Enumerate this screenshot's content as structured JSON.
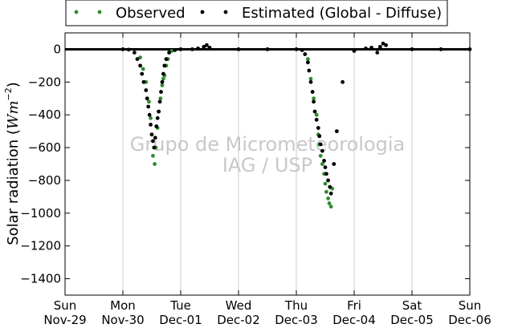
{
  "chart_data": {
    "type": "scatter",
    "title": "",
    "xlabel": "",
    "ylabel": "Solar radiation (Wm^-2)",
    "ylabel_parts": {
      "text": "Solar radiation (",
      "unit_base": "Wm",
      "unit_exp": "−2",
      "close": ")"
    },
    "xlim": [
      0,
      7
    ],
    "ylim": [
      -1500,
      100
    ],
    "grid": "vertical",
    "legend_position": "top",
    "x_ticks": [
      {
        "pos": 0,
        "day": "Sun",
        "date": "Nov-29"
      },
      {
        "pos": 1,
        "day": "Mon",
        "date": "Nov-30"
      },
      {
        "pos": 2,
        "day": "Tue",
        "date": "Dec-01"
      },
      {
        "pos": 3,
        "day": "Wed",
        "date": "Dec-02"
      },
      {
        "pos": 4,
        "day": "Thu",
        "date": "Dec-03"
      },
      {
        "pos": 5,
        "day": "Fri",
        "date": "Dec-04"
      },
      {
        "pos": 6,
        "day": "Sat",
        "date": "Dec-05"
      },
      {
        "pos": 7,
        "day": "Sun",
        "date": "Dec-06"
      }
    ],
    "y_ticks": [
      0,
      -200,
      -400,
      -600,
      -800,
      -1000,
      -1200,
      -1400
    ],
    "y_tick_labels": [
      "0",
      "−200",
      "−400",
      "−600",
      "−800",
      "−1000",
      "−1200",
      "−1400"
    ],
    "watermark": [
      "Grupo de Micrometeorologia",
      "IAG / USP"
    ],
    "series": [
      {
        "name": "Observed",
        "color": "#2e8b2e",
        "x": [
          1.3,
          1.35,
          1.4,
          1.45,
          1.48,
          1.5,
          1.52,
          1.55,
          1.57,
          1.6,
          1.62,
          1.65,
          1.68,
          1.7,
          1.72,
          1.75,
          1.78,
          1.8,
          1.85,
          4.2,
          4.25,
          4.3,
          4.35,
          4.38,
          4.4,
          4.42,
          4.45,
          4.48,
          4.5,
          4.52,
          4.55,
          4.57,
          4.6,
          4.62
        ],
        "y": [
          -50,
          -120,
          -200,
          -320,
          -420,
          -520,
          -650,
          -700,
          -600,
          -480,
          -380,
          -300,
          -220,
          -180,
          -160,
          -100,
          -60,
          -20,
          -10,
          -60,
          -180,
          -300,
          -400,
          -520,
          -580,
          -650,
          -700,
          -760,
          -820,
          -870,
          -910,
          -940,
          -960,
          -850
        ]
      },
      {
        "name": "Estimated (Global - Diffuse)",
        "color": "#000000",
        "x": [
          1.0,
          1.1,
          1.2,
          1.25,
          1.3,
          1.33,
          1.36,
          1.4,
          1.42,
          1.44,
          1.46,
          1.48,
          1.5,
          1.52,
          1.54,
          1.56,
          1.58,
          1.6,
          1.62,
          1.64,
          1.66,
          1.68,
          1.7,
          1.72,
          1.75,
          1.8,
          1.9,
          2.0,
          2.2,
          2.3,
          2.4,
          2.45,
          2.5,
          3.0,
          3.5,
          4.0,
          4.1,
          4.15,
          4.2,
          4.22,
          4.25,
          4.28,
          4.3,
          4.32,
          4.35,
          4.38,
          4.4,
          4.42,
          4.45,
          4.48,
          4.5,
          4.52,
          4.55,
          4.58,
          4.6,
          4.65,
          4.7,
          4.8,
          5.0,
          5.2,
          5.3,
          5.4,
          5.45,
          5.5,
          5.55,
          6.0,
          6.5,
          7.0
        ],
        "y": [
          0,
          -2,
          -20,
          -60,
          -100,
          -150,
          -200,
          -250,
          -300,
          -350,
          -400,
          -460,
          -520,
          -560,
          -600,
          -540,
          -470,
          -420,
          -380,
          -320,
          -260,
          -200,
          -150,
          -100,
          -60,
          -20,
          -5,
          0,
          0,
          5,
          15,
          25,
          10,
          0,
          0,
          0,
          -5,
          -30,
          -80,
          -130,
          -200,
          -260,
          -320,
          -380,
          -430,
          -480,
          -530,
          -580,
          -620,
          -680,
          -720,
          -760,
          -800,
          -840,
          -880,
          -700,
          -500,
          -200,
          -10,
          5,
          10,
          -20,
          15,
          35,
          25,
          0,
          0,
          0
        ]
      }
    ]
  }
}
